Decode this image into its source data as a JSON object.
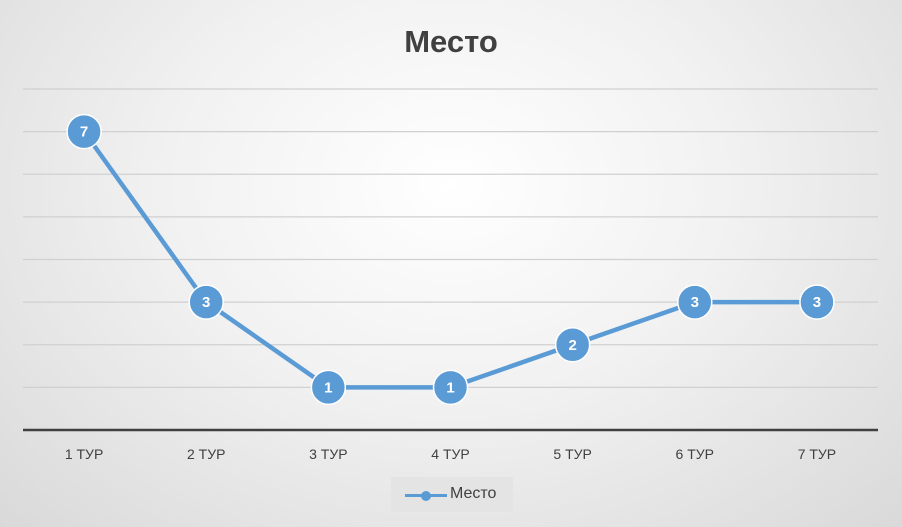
{
  "chart_data": {
    "type": "line",
    "title": "Место",
    "categories": [
      "1 ТУР",
      "2 ТУР",
      "3 ТУР",
      "4 ТУР",
      "5 ТУР",
      "6 ТУР",
      "7 ТУР"
    ],
    "series": [
      {
        "name": "Место",
        "values": [
          7,
          3,
          1,
          1,
          2,
          3,
          3
        ],
        "color": "#5b9bd5"
      }
    ],
    "ylim": [
      0,
      8
    ],
    "grid": true,
    "legend": "bottom",
    "data_labels": true
  }
}
